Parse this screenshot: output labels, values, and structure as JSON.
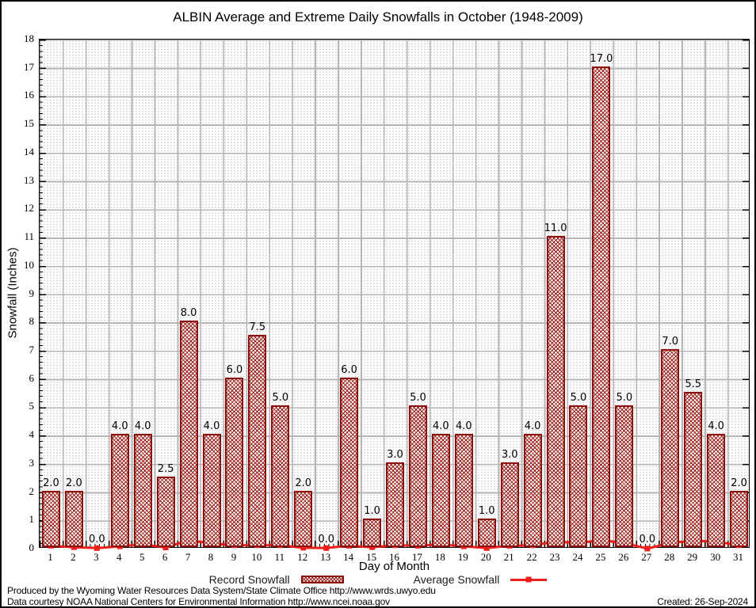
{
  "title": "ALBIN Average and Extreme Daily Snowfalls in October (1948-2009)",
  "chart_data": {
    "type": "bar",
    "title": "ALBIN Average and Extreme Daily Snowfalls in October (1948-2009)",
    "xlabel": "Day of Month",
    "ylabel": "Snowfall (Inches)",
    "ylim": [
      0,
      18
    ],
    "y_major_step": 1,
    "grid": "solid gray major lines with fine dotted minor grid",
    "legend_position": "bottom",
    "categories": [
      1,
      2,
      3,
      4,
      5,
      6,
      7,
      8,
      9,
      10,
      11,
      12,
      13,
      14,
      15,
      16,
      17,
      18,
      19,
      20,
      21,
      22,
      23,
      24,
      25,
      26,
      27,
      28,
      29,
      30,
      31
    ],
    "series": [
      {
        "name": "Record Snowfall",
        "type": "bar",
        "values": [
          2.0,
          2.0,
          0.0,
          4.0,
          4.0,
          2.5,
          8.0,
          4.0,
          6.0,
          7.5,
          5.0,
          2.0,
          0.0,
          6.0,
          1.0,
          3.0,
          5.0,
          4.0,
          4.0,
          1.0,
          3.0,
          4.0,
          11.0,
          5.0,
          17.0,
          5.0,
          0.0,
          7.0,
          5.5,
          4.0,
          2.0
        ],
        "value_labels": [
          "2.0",
          "2.0",
          "0.0",
          "4.0",
          "4.0",
          "2.5",
          "8.0",
          "4.0",
          "6.0",
          "7.5",
          "5.0",
          "2.0",
          "0.0",
          "6.0",
          "1.0",
          "3.0",
          "5.0",
          "4.0",
          "4.0",
          "1.0",
          "3.0",
          "4.0",
          "11.0",
          "5.0",
          "17.0",
          "5.0",
          "0.0",
          "7.0",
          "5.5",
          "4.0",
          "2.0"
        ]
      },
      {
        "name": "Average Snowfall",
        "type": "line",
        "values_estimated": true,
        "values": [
          0.1,
          0.05,
          0.02,
          0.08,
          0.15,
          0.04,
          0.3,
          0.18,
          0.12,
          0.12,
          0.12,
          0.03,
          0.02,
          0.1,
          0.05,
          0.12,
          0.1,
          0.15,
          0.08,
          0.02,
          0.1,
          0.12,
          0.25,
          0.2,
          0.3,
          0.2,
          0.0,
          0.2,
          0.28,
          0.25,
          0.12
        ]
      }
    ]
  },
  "legend": {
    "record_label": "Record Snowfall",
    "average_label": "Average Snowfall"
  },
  "footer": {
    "line1": "Produced by the Wyoming Water Resources Data System/State Climate Office http://www.wrds.uwyo.edu",
    "line2": "Data courtesy NOAA National Centers for Environmental Information http://www.ncei.noaa.gov",
    "created": "Created: 26-Sep-2024"
  },
  "colors": {
    "bar_hatch": "#9b1b15",
    "bar_border": "#8e100c",
    "avg_line": "#ee1f1b",
    "grid_major": "#b5b5b5",
    "grid_dot": "#c9c9c9"
  }
}
